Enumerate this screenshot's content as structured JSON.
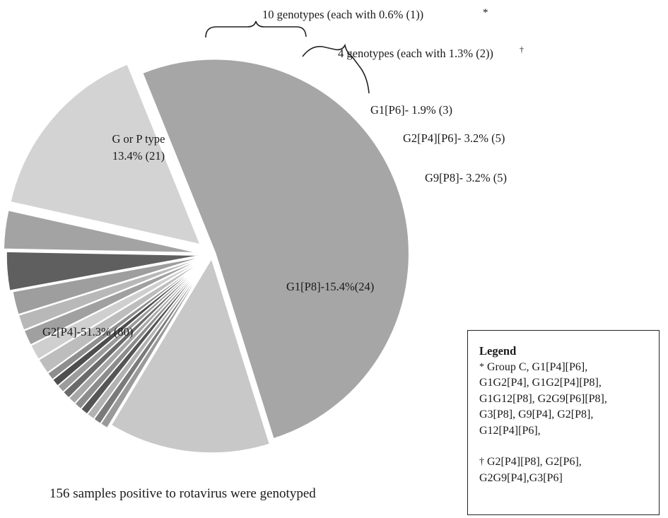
{
  "chart_data": {
    "type": "pie",
    "title": "",
    "total_samples": 156,
    "slices": [
      {
        "label": "G2[P4]-51.3% (80)",
        "value": 80,
        "percent": 51.3,
        "color": "#a6a6a6"
      },
      {
        "label": "G or P type 13.4% (21)",
        "value": 21,
        "percent": 13.4,
        "color": "#c8c8c8"
      },
      {
        "label": "10 genotypes (each with 0.6% (1))",
        "value": 1,
        "percent": 0.6,
        "color": "#9a9a9a"
      },
      {
        "label": "10 genotypes (each with 0.6% (1))",
        "value": 1,
        "percent": 0.6,
        "color": "#7a7a7a"
      },
      {
        "label": "10 genotypes (each with 0.6% (1))",
        "value": 1,
        "percent": 0.6,
        "color": "#b2b2b2"
      },
      {
        "label": "10 genotypes (each with 0.6% (1))",
        "value": 1,
        "percent": 0.6,
        "color": "#555555"
      },
      {
        "label": "10 genotypes (each with 0.6% (1))",
        "value": 1,
        "percent": 0.6,
        "color": "#8c8c8c"
      },
      {
        "label": "10 genotypes (each with 0.6% (1))",
        "value": 1,
        "percent": 0.6,
        "color": "#a8a8a8"
      },
      {
        "label": "10 genotypes (each with 0.6% (1))",
        "value": 1,
        "percent": 0.6,
        "color": "#6a6a6a"
      },
      {
        "label": "10 genotypes (each with 0.6% (1))",
        "value": 1,
        "percent": 0.6,
        "color": "#9c9c9c"
      },
      {
        "label": "10 genotypes (each with 0.6% (1))",
        "value": 1,
        "percent": 0.6,
        "color": "#4e4e4e"
      },
      {
        "label": "10 genotypes (each with 0.6% (1))",
        "value": 1,
        "percent": 0.6,
        "color": "#8e8e8e"
      },
      {
        "label": "4 genotypes (each with 1.3% (2))",
        "value": 2,
        "percent": 1.3,
        "color": "#bdbdbd"
      },
      {
        "label": "4 genotypes (each with 1.3% (2))",
        "value": 2,
        "percent": 1.3,
        "color": "#cfcfcf"
      },
      {
        "label": "4 genotypes (each with 1.3% (2))",
        "value": 2,
        "percent": 1.3,
        "color": "#a0a0a0"
      },
      {
        "label": "4 genotypes (each with 1.3% (2))",
        "value": 2,
        "percent": 1.3,
        "color": "#b8b8b8"
      },
      {
        "label": "G1[P6]- 1.9% (3)",
        "value": 3,
        "percent": 1.9,
        "color": "#9e9e9e"
      },
      {
        "label": "G2[P4][P6]- 3.2% (5)",
        "value": 5,
        "percent": 3.2,
        "color": "#5f5f5f"
      },
      {
        "label": "G9[P8]- 3.2%  (5)",
        "value": 5,
        "percent": 3.2,
        "color": "#a3a3a3"
      },
      {
        "label": "G1[P8]-15.4%(24)",
        "value": 24,
        "percent": 15.4,
        "color": "#d3d3d3"
      }
    ],
    "slice_labels": {
      "g2p4": {
        "line1": "G2[P4]-51.3% (80)"
      },
      "gorp": {
        "line1": "G or P type",
        "line2": "13.4% (21)"
      },
      "g1p8": {
        "line1": "G1[P8]-15.4%(24)"
      },
      "g9p8": {
        "line1": "G9[P8]- 3.2%  (5)"
      },
      "g2p4p6": {
        "line1": "G2[P4][P6]- 3.2% (5)"
      },
      "g1p6": {
        "line1": "G1[P6]- 1.9% (3)"
      }
    },
    "annotations": {
      "ten_genotypes": "10 genotypes (each with 0.6% (1))",
      "ten_marker": "*",
      "four_genotypes": "4 genotypes (each with 1.3% (2))",
      "four_marker": "†"
    },
    "legend_placement": "bottom-right"
  },
  "caption": "156 samples positive to rotavirus were genotyped",
  "legend": {
    "title": "Legend",
    "star_marker": "*",
    "star_lines": [
      "Group C, G1[P4][P6],",
      "G1G2[P4], G1G2[P4][P8],",
      "G1G12[P8], G2G9[P6][P8],",
      "G3[P8], G9[P4], G2[P8],",
      "G12[P4][P6],"
    ],
    "dagger_marker": "†",
    "dagger_lines": [
      "G2[P4][P8], G2[P6],",
      "G2G9[P4],G3[P6]"
    ]
  }
}
